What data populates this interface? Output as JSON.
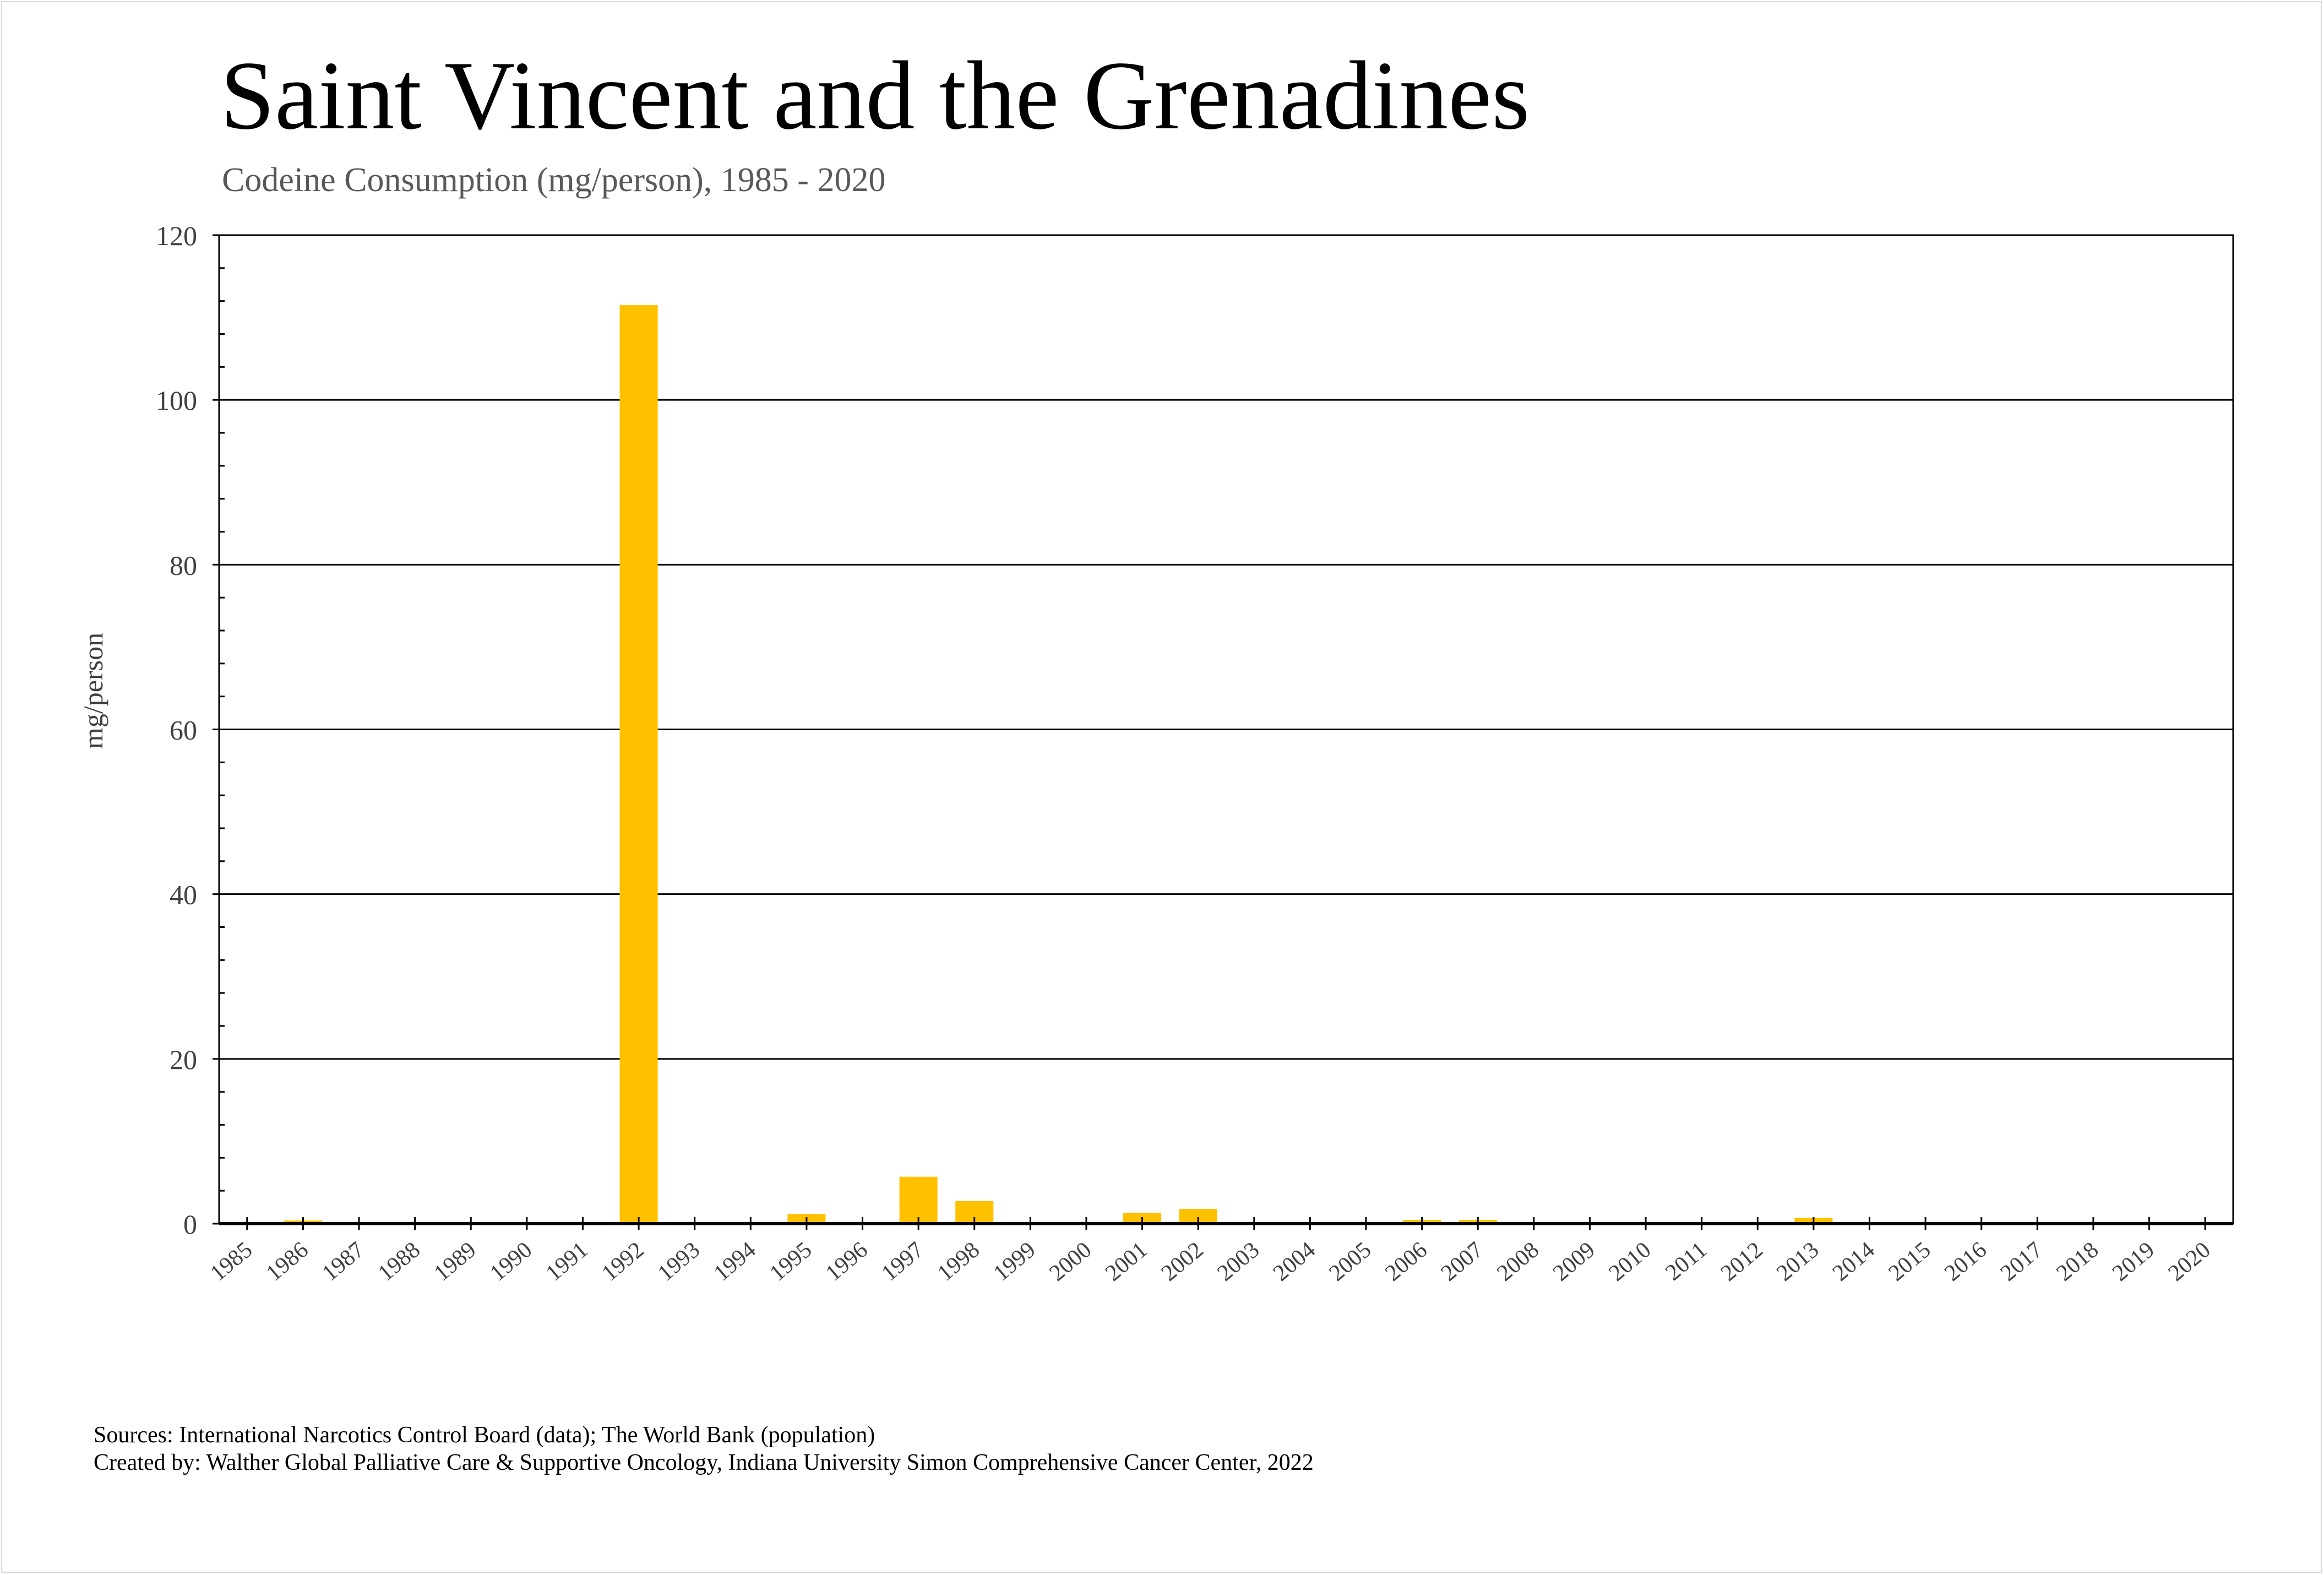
{
  "chart_data": {
    "type": "bar",
    "title": "Saint Vincent and the Grenadines",
    "subtitle": "Codeine Consumption (mg/person), 1985 - 2020",
    "xlabel": "",
    "ylabel": "mg/person",
    "ylim": [
      0,
      120
    ],
    "yticks": [
      0,
      20,
      40,
      60,
      80,
      100,
      120
    ],
    "grid": true,
    "bar_color": "#FFC000",
    "categories": [
      "1985",
      "1986",
      "1987",
      "1988",
      "1989",
      "1990",
      "1991",
      "1992",
      "1993",
      "1994",
      "1995",
      "1996",
      "1997",
      "1998",
      "1999",
      "2000",
      "2001",
      "2002",
      "2003",
      "2004",
      "2005",
      "2006",
      "2007",
      "2008",
      "2009",
      "2010",
      "2011",
      "2012",
      "2013",
      "2014",
      "2015",
      "2016",
      "2017",
      "2018",
      "2019",
      "2020"
    ],
    "values": [
      0,
      0.38,
      0,
      0,
      0,
      0,
      0,
      111.5,
      0,
      0,
      1.2,
      0,
      5.7,
      2.75,
      0,
      0,
      1.3,
      1.8,
      0,
      0,
      0,
      0.45,
      0.45,
      0,
      0,
      0,
      0,
      0,
      0.7,
      0,
      0,
      0,
      0,
      0,
      0,
      0
    ]
  },
  "footer": {
    "sources": "Sources: International Narcotics Control Board (data); The World Bank (population)",
    "created": "Created by: Walther Global Palliative Care & Supportive Oncology, Indiana University Simon Comprehensive Cancer Center, 2022"
  }
}
